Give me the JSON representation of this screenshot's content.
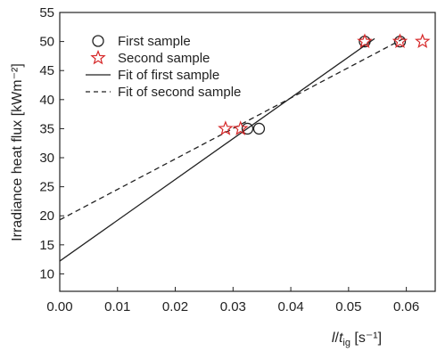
{
  "chart_data": {
    "type": "scatter",
    "title": "",
    "xlabel": {
      "italic_main": "l",
      "slash": "/",
      "italic_t": "t",
      "subscript": "ig",
      "unit": " [s⁻¹]"
    },
    "ylabel": "Irradiance heat flux [kWm⁻²]",
    "xlim": [
      0.0,
      0.065
    ],
    "ylim": [
      7,
      55
    ],
    "xticks": [
      0.0,
      0.01,
      0.02,
      0.03,
      0.04,
      0.05,
      0.06
    ],
    "xtick_labels": [
      "0.00",
      "0.01",
      "0.02",
      "0.03",
      "0.04",
      "0.05",
      "0.06"
    ],
    "yticks": [
      10,
      15,
      20,
      25,
      30,
      35,
      40,
      45,
      50,
      55
    ],
    "ytick_labels": [
      "10",
      "15",
      "20",
      "25",
      "30",
      "35",
      "40",
      "45",
      "50",
      "55"
    ],
    "legend_position": "top-left",
    "series": [
      {
        "name": "First sample",
        "marker": "circle",
        "color": "#222222",
        "points": [
          [
            0.0325,
            35
          ],
          [
            0.0345,
            35
          ],
          [
            0.0528,
            50
          ],
          [
            0.0589,
            50
          ]
        ]
      },
      {
        "name": "Second sample",
        "marker": "star",
        "color": "#d62728",
        "points": [
          [
            0.0287,
            35
          ],
          [
            0.0313,
            35
          ],
          [
            0.0528,
            50
          ],
          [
            0.0589,
            50
          ],
          [
            0.0628,
            50
          ]
        ]
      }
    ],
    "fits": [
      {
        "name": "Fit of first sample",
        "style": "solid",
        "color": "#222222",
        "x": [
          0.0,
          0.0545
        ],
        "y": [
          12.2,
          50.5
        ]
      },
      {
        "name": "Fit of second sample",
        "style": "dashed",
        "color": "#222222",
        "x": [
          0.0,
          0.0595
        ],
        "y": [
          19.3,
          50.5
        ]
      }
    ]
  }
}
